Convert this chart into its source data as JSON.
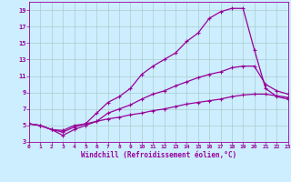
{
  "xlabel": "Windchill (Refroidissement éolien,°C)",
  "bg_color": "#cceeff",
  "line_color": "#990099",
  "grid_color": "#aacccc",
  "xmin": 0,
  "xmax": 23,
  "ymin": 3,
  "ymax": 20,
  "xticks": [
    0,
    1,
    2,
    3,
    4,
    5,
    6,
    7,
    8,
    9,
    10,
    11,
    12,
    13,
    14,
    15,
    16,
    17,
    18,
    19,
    20,
    21,
    22,
    23
  ],
  "yticks": [
    3,
    5,
    7,
    9,
    11,
    13,
    15,
    17,
    19
  ],
  "line1_x": [
    0,
    1,
    2,
    3,
    4,
    5,
    6,
    7,
    8,
    9,
    10,
    11,
    12,
    13,
    14,
    15,
    16,
    17,
    18,
    19,
    20,
    21,
    22,
    23
  ],
  "line1_y": [
    5.2,
    5.0,
    4.5,
    4.4,
    5.0,
    5.2,
    6.5,
    7.8,
    8.5,
    9.5,
    11.2,
    12.2,
    13.0,
    13.8,
    15.2,
    16.2,
    18.0,
    18.8,
    19.2,
    19.2,
    14.2,
    9.5,
    8.5,
    8.2
  ],
  "line2_x": [
    0,
    1,
    2,
    3,
    4,
    5,
    6,
    7,
    8,
    9,
    10,
    11,
    12,
    13,
    14,
    15,
    16,
    17,
    18,
    19,
    20,
    21,
    22,
    23
  ],
  "line2_y": [
    5.2,
    5.0,
    4.5,
    3.8,
    4.5,
    5.0,
    5.5,
    6.5,
    7.0,
    7.5,
    8.2,
    8.8,
    9.2,
    9.8,
    10.3,
    10.8,
    11.2,
    11.5,
    12.0,
    12.2,
    12.2,
    10.0,
    9.2,
    8.8
  ],
  "line3_x": [
    0,
    1,
    2,
    3,
    4,
    5,
    6,
    7,
    8,
    9,
    10,
    11,
    12,
    13,
    14,
    15,
    16,
    17,
    18,
    19,
    20,
    21,
    22,
    23
  ],
  "line3_y": [
    5.2,
    5.0,
    4.5,
    4.2,
    4.8,
    5.2,
    5.5,
    5.8,
    6.0,
    6.3,
    6.5,
    6.8,
    7.0,
    7.3,
    7.6,
    7.8,
    8.0,
    8.2,
    8.5,
    8.7,
    8.8,
    8.8,
    8.6,
    8.4
  ]
}
